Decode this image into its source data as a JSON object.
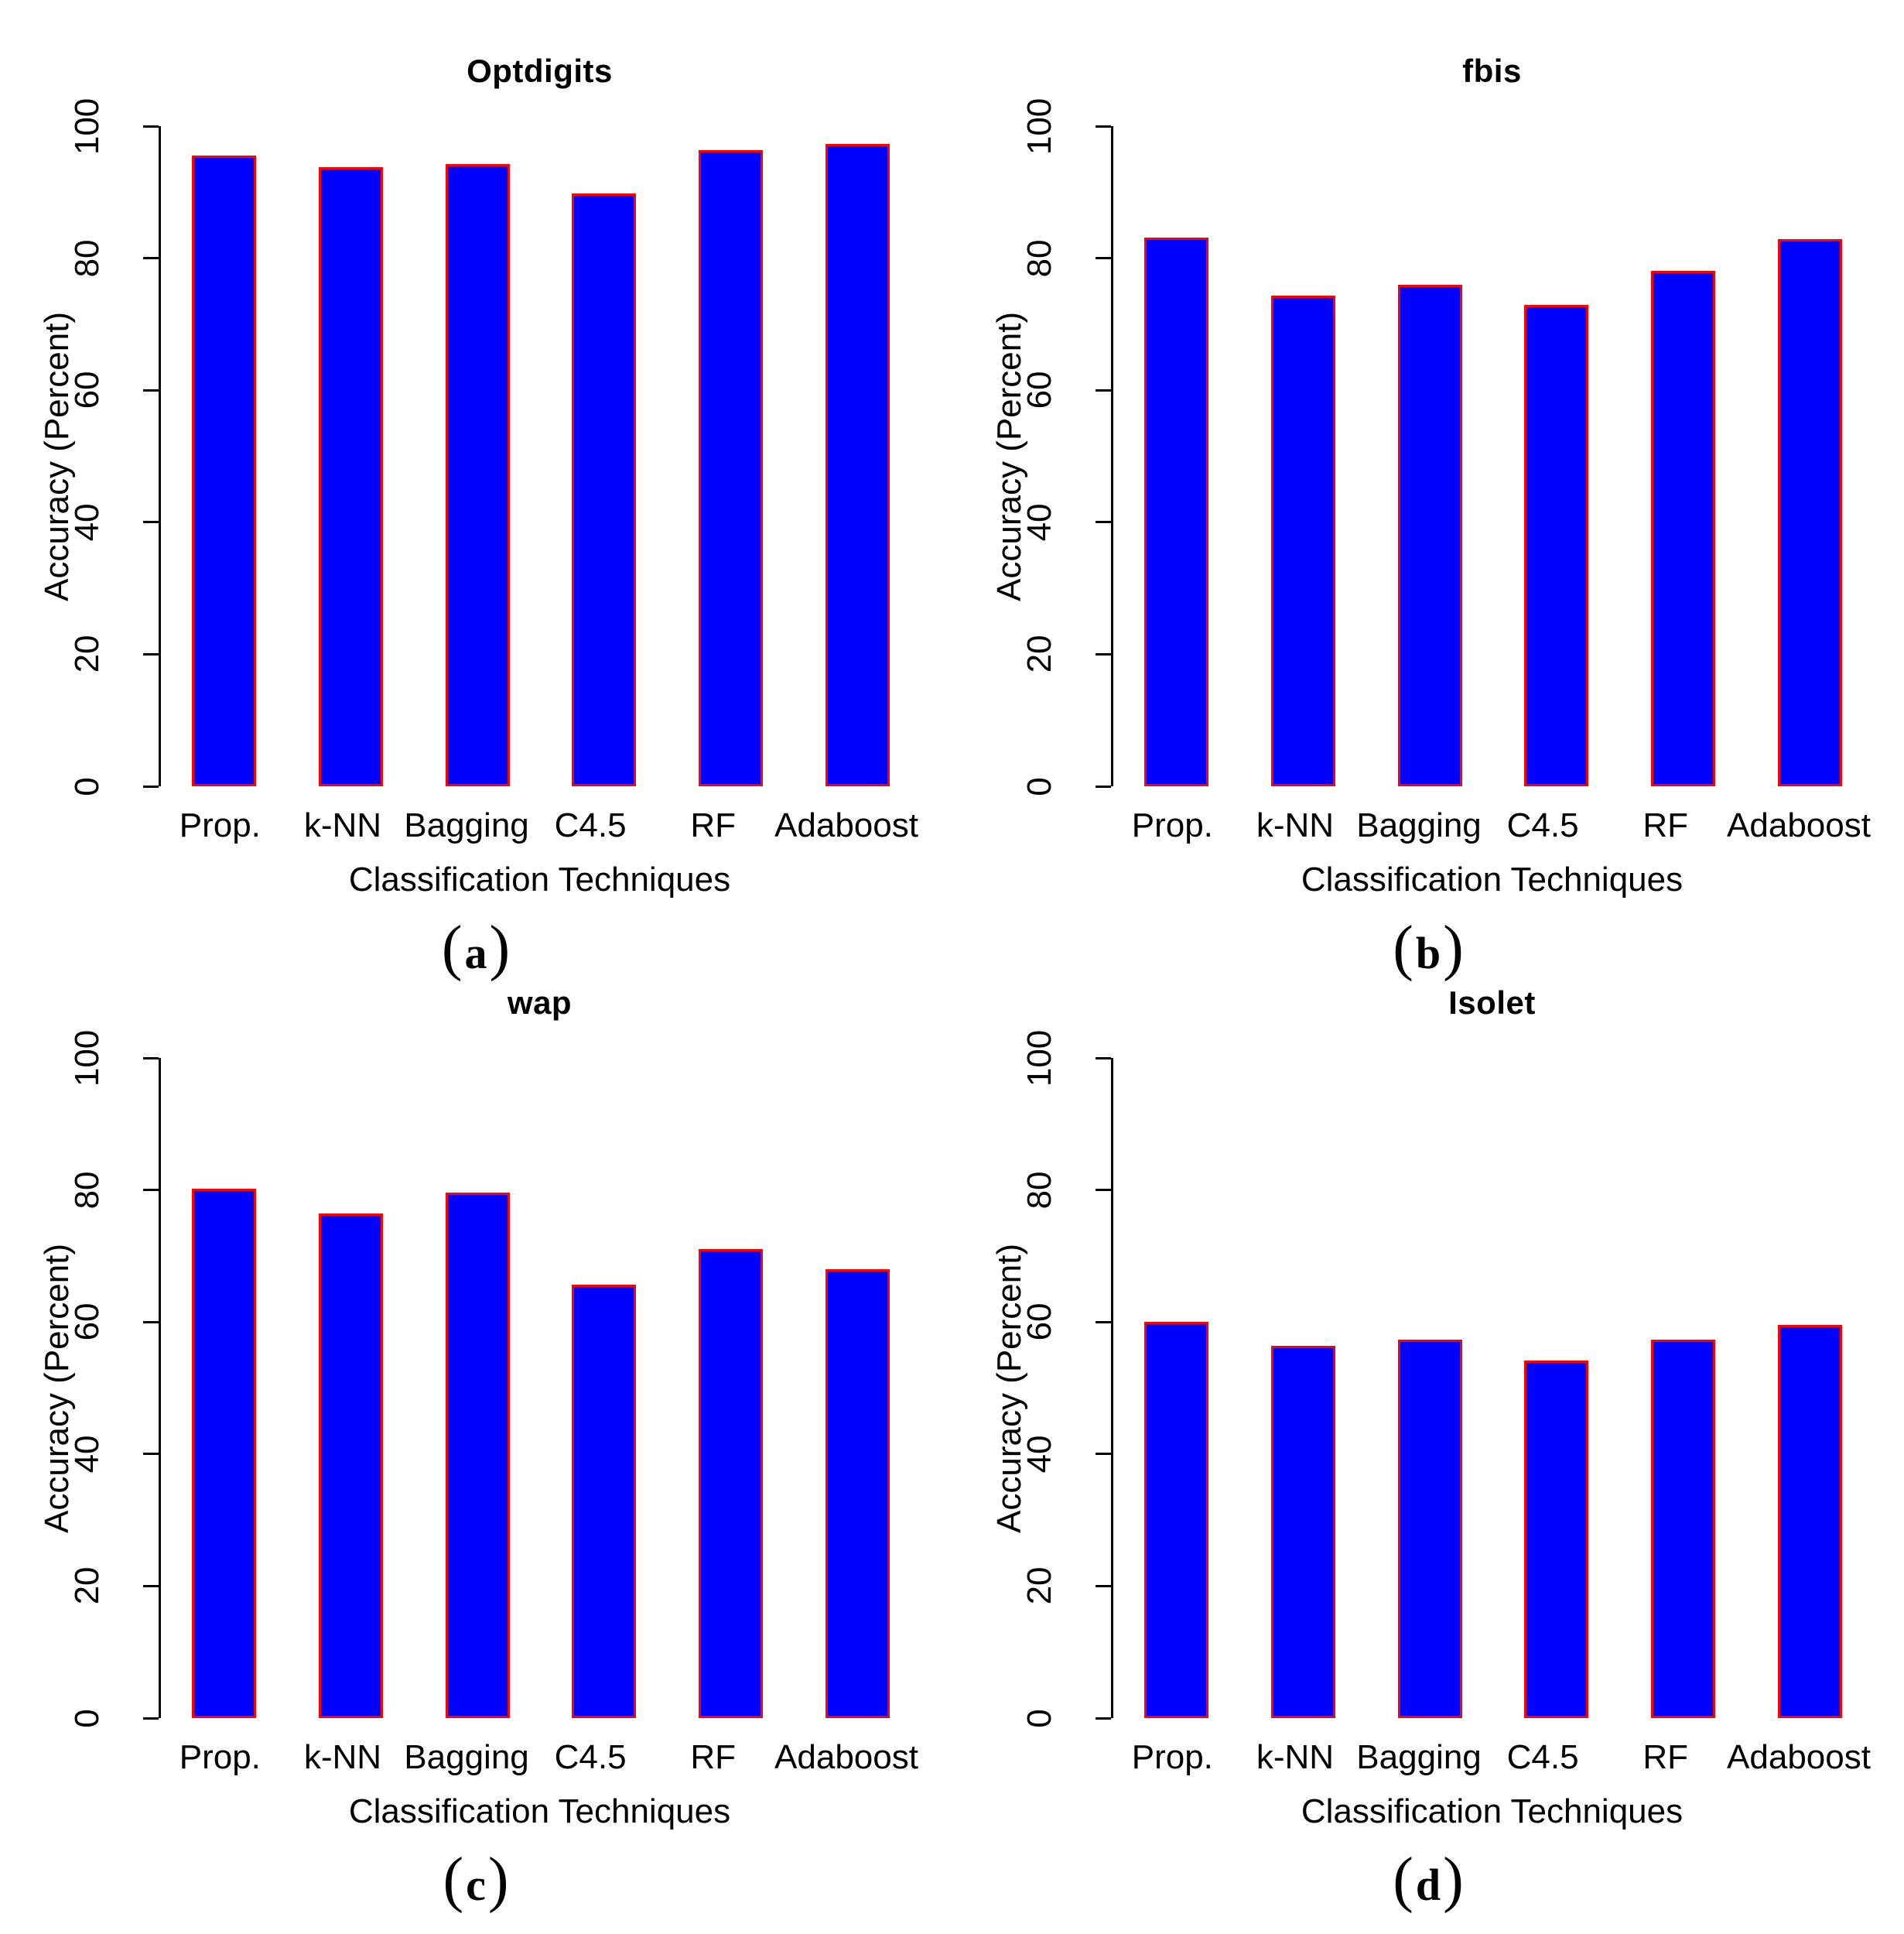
{
  "figure": {
    "background": "#ffffff",
    "axis_color": "#000000",
    "bar_fill": "#0000ff",
    "bar_border": "#ff0000"
  },
  "chart_data": [
    {
      "type": "bar",
      "title": "Optdigits",
      "caption_letter": "a",
      "caption_open": "(",
      "caption_close": ")",
      "xlabel": "Classification Techniques",
      "ylabel": "Accuracy (Percent)",
      "categories": [
        "Prop.",
        "k-NN",
        "Bagging",
        "C4.5",
        "RF",
        "Adaboost"
      ],
      "values": [
        95.5,
        93.8,
        94.3,
        89.8,
        96.4,
        97.3
      ],
      "ylim": [
        0,
        100
      ],
      "yticks": [
        0,
        20,
        40,
        60,
        80,
        100
      ],
      "grid": "off",
      "legend": "none"
    },
    {
      "type": "bar",
      "title": "fbis",
      "caption_letter": "b",
      "caption_open": "(",
      "caption_close": ")",
      "xlabel": "Classification Techniques",
      "ylabel": "Accuracy (Percent)",
      "categories": [
        "Prop.",
        "k-NN",
        "Bagging",
        "C4.5",
        "RF",
        "Adaboost"
      ],
      "values": [
        83.1,
        74.3,
        76.0,
        72.9,
        78.1,
        82.9
      ],
      "ylim": [
        0,
        100
      ],
      "yticks": [
        0,
        20,
        40,
        60,
        80,
        100
      ],
      "grid": "off",
      "legend": "none"
    },
    {
      "type": "bar",
      "title": "wap",
      "caption_letter": "c",
      "caption_open": "(",
      "caption_close": ")",
      "xlabel": "Classification Techniques",
      "ylabel": "Accuracy (Percent)",
      "categories": [
        "Prop.",
        "k-NN",
        "Bagging",
        "C4.5",
        "RF",
        "Adaboost"
      ],
      "values": [
        80.2,
        76.4,
        79.6,
        65.7,
        71.1,
        68.0
      ],
      "ylim": [
        0,
        100
      ],
      "yticks": [
        0,
        20,
        40,
        60,
        80,
        100
      ],
      "grid": "off",
      "legend": "none"
    },
    {
      "type": "bar",
      "title": "Isolet",
      "caption_letter": "d",
      "caption_open": "(",
      "caption_close": ")",
      "xlabel": "Classification Techniques",
      "ylabel": "Accuracy (Percent)",
      "categories": [
        "Prop.",
        "k-NN",
        "Bagging",
        "C4.5",
        "RF",
        "Adaboost"
      ],
      "values": [
        60.0,
        56.4,
        57.3,
        54.2,
        57.3,
        59.5
      ],
      "ylim": [
        0,
        100
      ],
      "yticks": [
        0,
        20,
        40,
        60,
        80,
        100
      ],
      "grid": "off",
      "legend": "none"
    }
  ]
}
